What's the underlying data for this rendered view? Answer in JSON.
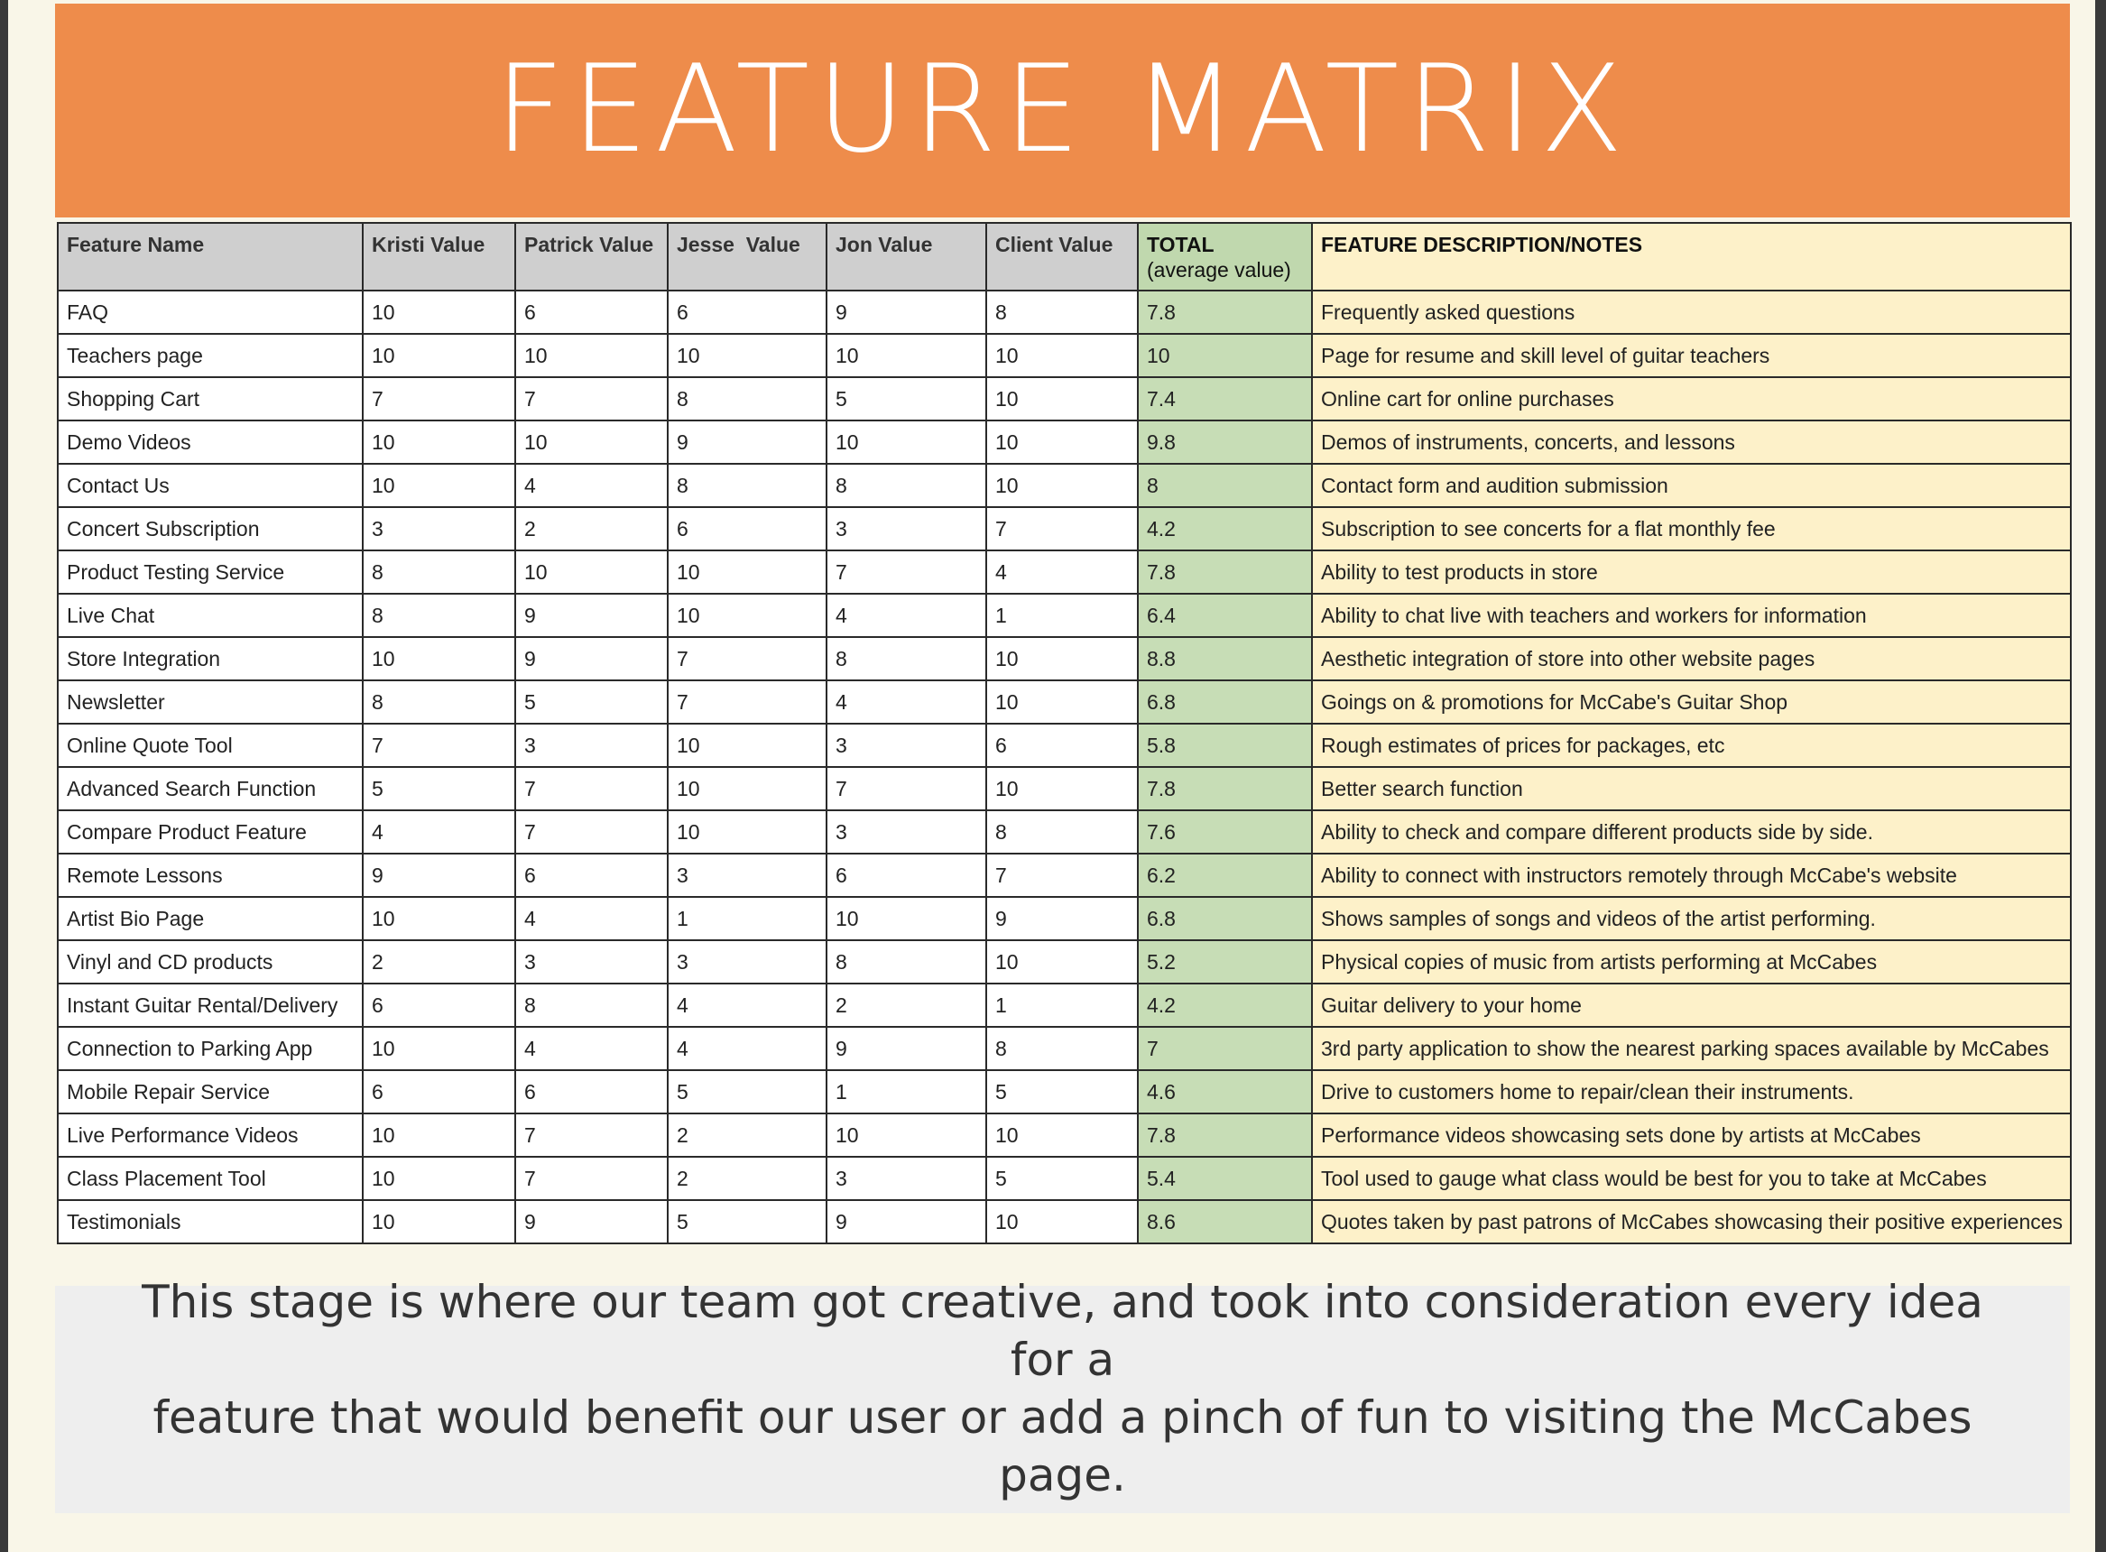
{
  "title": "FEATURE MATRIX",
  "table": {
    "headers": {
      "feature": "Feature Name",
      "kristi": "Kristi Value",
      "patrick": "Patrick Value",
      "jesse": "Jesse  Value",
      "jon": "Jon Value",
      "client": "Client Value",
      "total": "TOTAL",
      "total_sub": "(average value)",
      "desc": "FEATURE DESCRIPTION/NOTES"
    },
    "rows": [
      {
        "feature": "FAQ",
        "kristi": "10",
        "patrick": "6",
        "jesse": "6",
        "jon": "9",
        "client": "8",
        "total": "7.8",
        "desc": "Frequently asked questions"
      },
      {
        "feature": "Teachers page",
        "kristi": "10",
        "patrick": "10",
        "jesse": "10",
        "jon": "10",
        "client": "10",
        "total": "10",
        "desc": "Page for resume and skill level of guitar teachers"
      },
      {
        "feature": "Shopping Cart",
        "kristi": "7",
        "patrick": "7",
        "jesse": "8",
        "jon": "5",
        "client": "10",
        "total": "7.4",
        "desc": "Online cart for online purchases"
      },
      {
        "feature": "Demo Videos",
        "kristi": "10",
        "patrick": "10",
        "jesse": "9",
        "jon": "10",
        "client": "10",
        "total": "9.8",
        "desc": "Demos of instruments, concerts, and lessons"
      },
      {
        "feature": "Contact Us",
        "kristi": "10",
        "patrick": "4",
        "jesse": "8",
        "jon": "8",
        "client": "10",
        "total": "8",
        "desc": "Contact form and audition submission"
      },
      {
        "feature": "Concert Subscription",
        "kristi": "3",
        "patrick": "2",
        "jesse": "6",
        "jon": "3",
        "client": "7",
        "total": "4.2",
        "desc": "Subscription to see concerts for a flat monthly fee"
      },
      {
        "feature": "Product Testing Service",
        "kristi": "8",
        "patrick": "10",
        "jesse": "10",
        "jon": "7",
        "client": "4",
        "total": "7.8",
        "desc": "Ability to test products in store"
      },
      {
        "feature": "Live Chat",
        "kristi": "8",
        "patrick": "9",
        "jesse": "10",
        "jon": "4",
        "client": "1",
        "total": "6.4",
        "desc": "Ability to chat live with teachers and workers for information"
      },
      {
        "feature": "Store Integration",
        "kristi": "10",
        "patrick": "9",
        "jesse": "7",
        "jon": "8",
        "client": "10",
        "total": "8.8",
        "desc": "Aesthetic integration of store into other website pages"
      },
      {
        "feature": "Newsletter",
        "kristi": "8",
        "patrick": "5",
        "jesse": "7",
        "jon": "4",
        "client": "10",
        "total": "6.8",
        "desc": "Goings on & promotions for McCabe's Guitar Shop"
      },
      {
        "feature": "Online Quote Tool",
        "kristi": "7",
        "patrick": "3",
        "jesse": "10",
        "jon": "3",
        "client": "6",
        "total": "5.8",
        "desc": "Rough estimates of prices for packages, etc"
      },
      {
        "feature": "Advanced Search Function",
        "kristi": "5",
        "patrick": "7",
        "jesse": "10",
        "jon": "7",
        "client": "10",
        "total": "7.8",
        "desc": "Better search function"
      },
      {
        "feature": "Compare Product Feature",
        "kristi": "4",
        "patrick": "7",
        "jesse": "10",
        "jon": "3",
        "client": "8",
        "total": "7.6",
        "desc": "Ability to check and compare different products side by side."
      },
      {
        "feature": "Remote Lessons",
        "kristi": "9",
        "patrick": "6",
        "jesse": "3",
        "jon": "6",
        "client": "7",
        "total": "6.2",
        "desc": "Ability to connect with instructors remotely through McCabe's website"
      },
      {
        "feature": "Artist Bio Page",
        "kristi": "10",
        "patrick": "4",
        "jesse": "1",
        "jon": "10",
        "client": "9",
        "total": "6.8",
        "desc": "Shows samples of songs and videos of the artist performing."
      },
      {
        "feature": "Vinyl and CD products",
        "kristi": "2",
        "patrick": "3",
        "jesse": "3",
        "jon": "8",
        "client": "10",
        "total": "5.2",
        "desc": "Physical copies of music from artists performing at McCabes"
      },
      {
        "feature": "Instant Guitar Rental/Delivery",
        "kristi": "6",
        "patrick": "8",
        "jesse": "4",
        "jon": "2",
        "client": "1",
        "total": "4.2",
        "desc": "Guitar delivery to your home"
      },
      {
        "feature": "Connection to Parking App",
        "kristi": "10",
        "patrick": "4",
        "jesse": "4",
        "jon": "9",
        "client": "8",
        "total": "7",
        "desc": "3rd party application to show the nearest parking spaces available by McCabes"
      },
      {
        "feature": "Mobile Repair Service",
        "kristi": "6",
        "patrick": "6",
        "jesse": "5",
        "jon": "1",
        "client": "5",
        "total": "4.6",
        "desc": "Drive to customers home to repair/clean their instruments."
      },
      {
        "feature": "Live Performance Videos",
        "kristi": "10",
        "patrick": "7",
        "jesse": "2",
        "jon": "10",
        "client": "10",
        "total": "7.8",
        "desc": "Performance videos showcasing sets done by artists at McCabes"
      },
      {
        "feature": "Class Placement Tool",
        "kristi": "10",
        "patrick": "7",
        "jesse": "2",
        "jon": "3",
        "client": "5",
        "total": "5.4",
        "desc": "Tool used to gauge what class would be best for you to take at McCabes"
      },
      {
        "feature": "Testimonials",
        "kristi": "10",
        "patrick": "9",
        "jesse": "5",
        "jon": "9",
        "client": "10",
        "total": "8.6",
        "desc": "Quotes taken by past patrons of McCabes showcasing their positive experiences"
      }
    ]
  },
  "note": {
    "line1": "This stage is where our team got creative, and took into consideration every idea for a",
    "line2": "feature that would benefit our user or add a pinch of fun to visiting the McCabes page."
  },
  "colors": {
    "banner": "#ee8c4b",
    "header_gray": "#cfcfcf",
    "total_green": "#c7ddb6",
    "desc_yellow": "#fdf1c9",
    "note_gray": "#eeeeee",
    "page_bg": "#f9f6e8"
  }
}
